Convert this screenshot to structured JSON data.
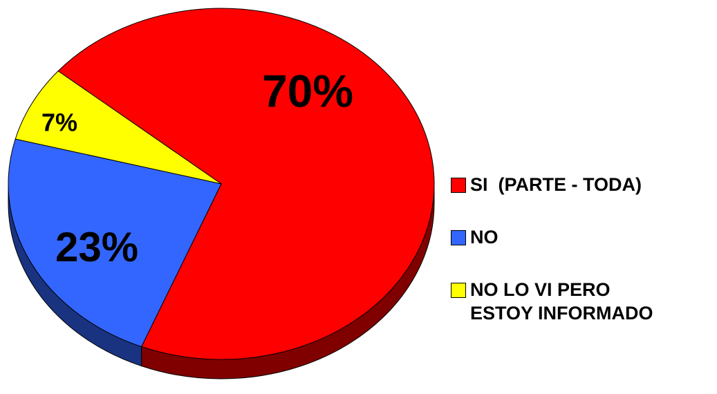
{
  "chart_data": {
    "type": "pie",
    "categories": [
      "SI  (PARTE - TODA)",
      "NO",
      "NO LO VI PERO ESTOY INFORMADO"
    ],
    "values": [
      70,
      23,
      7
    ],
    "value_labels": [
      "70%",
      "23%",
      "7%"
    ],
    "colors": [
      "#ff0000",
      "#3366ff",
      "#ffff00"
    ],
    "legend": "right"
  }
}
